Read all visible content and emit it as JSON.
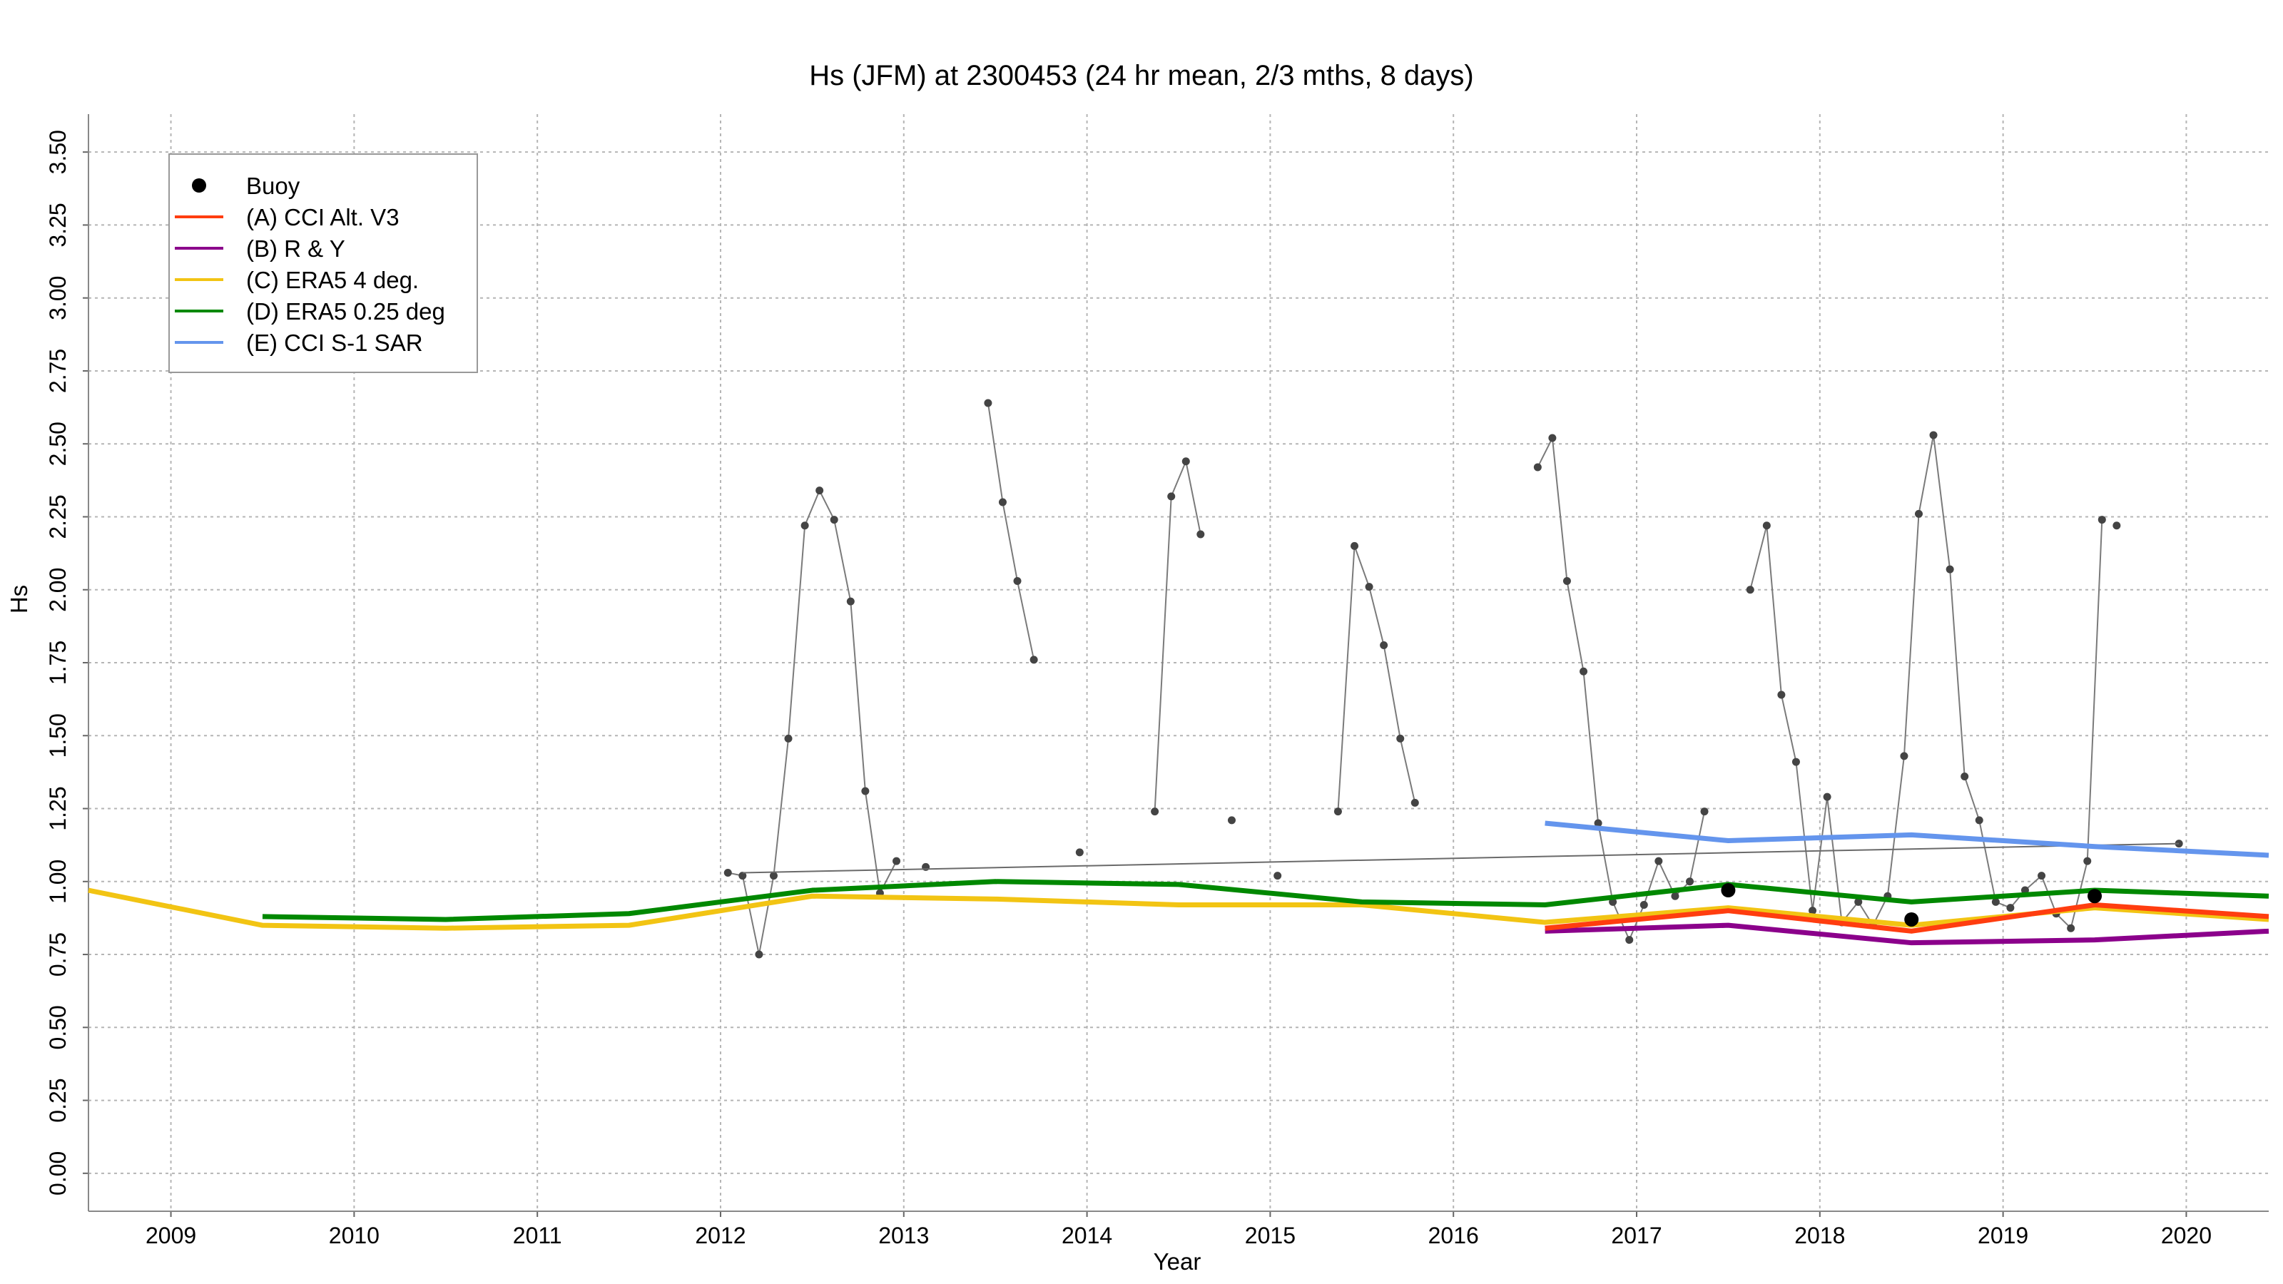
{
  "chart_data": {
    "type": "line",
    "title": "Hs (JFM) at 2300453 (24 hr mean, 2/3 mths, 8 days)",
    "xlabel": "Year",
    "ylabel": "Hs",
    "xlim": [
      2008.55,
      2020.45
    ],
    "ylim": [
      -0.13,
      3.63
    ],
    "x_ticks": [
      "2009",
      "2010",
      "2011",
      "2012",
      "2013",
      "2014",
      "2015",
      "2016",
      "2017",
      "2018",
      "2019",
      "2020"
    ],
    "y_ticks": [
      "0.00",
      "0.25",
      "0.50",
      "0.75",
      "1.00",
      "1.25",
      "1.50",
      "1.75",
      "2.00",
      "2.25",
      "2.50",
      "2.75",
      "3.00",
      "3.25",
      "3.50"
    ],
    "grid": true,
    "legend_position": "top-left",
    "series": [
      {
        "name": "Buoy",
        "style": "marker",
        "color": "#000000",
        "x": [
          2017.5,
          2018.5,
          2019.5
        ],
        "y": [
          0.97,
          0.87,
          0.95
        ]
      },
      {
        "name": "(A) CCI Alt. V3",
        "style": "line",
        "color": "#ff3d0f",
        "x": [
          2016.5,
          2017.5,
          2018.5,
          2019.5,
          2020.45
        ],
        "y": [
          0.84,
          0.9,
          0.83,
          0.92,
          0.88
        ]
      },
      {
        "name": "(B) R & Y",
        "style": "line",
        "color": "#8b008b",
        "x": [
          2016.5,
          2017.5,
          2018.5,
          2019.5,
          2020.45
        ],
        "y": [
          0.83,
          0.85,
          0.79,
          0.8,
          0.83
        ]
      },
      {
        "name": "(C) ERA5 4 deg.",
        "style": "line",
        "color": "#f2c413",
        "x": [
          2008.55,
          2009.5,
          2010.5,
          2011.5,
          2012.5,
          2013.5,
          2014.5,
          2015.5,
          2016.5,
          2017.5,
          2018.5,
          2019.5,
          2020.45
        ],
        "y": [
          0.97,
          0.85,
          0.84,
          0.85,
          0.95,
          0.94,
          0.92,
          0.92,
          0.86,
          0.91,
          0.85,
          0.91,
          0.87
        ]
      },
      {
        "name": "(D) ERA5 0.25 deg",
        "style": "line",
        "color": "#008800",
        "x": [
          2009.5,
          2010.5,
          2011.5,
          2012.5,
          2013.5,
          2014.5,
          2015.5,
          2016.5,
          2017.5,
          2018.5,
          2019.5,
          2020.45
        ],
        "y": [
          0.88,
          0.87,
          0.89,
          0.97,
          1.0,
          0.99,
          0.93,
          0.92,
          0.99,
          0.93,
          0.97,
          0.95
        ]
      },
      {
        "name": "(E) CCI S-1 SAR",
        "style": "line",
        "color": "#6495ed",
        "x": [
          2016.5,
          2017.5,
          2018.5,
          2019.5,
          2020.45
        ],
        "y": [
          1.2,
          1.14,
          1.16,
          1.12,
          1.09
        ]
      }
    ],
    "buoy_monthly": {
      "color": "#444444",
      "segments": [
        {
          "x": [
            2012.04,
            2012.12,
            2012.21,
            2012.29,
            2012.37,
            2012.46,
            2012.54,
            2012.62,
            2012.71,
            2012.79,
            2012.87,
            2012.96
          ],
          "y": [
            1.03,
            1.02,
            0.75,
            1.02,
            1.49,
            2.22,
            2.34,
            2.24,
            1.96,
            1.31,
            0.96,
            1.07
          ]
        },
        {
          "x": [
            2013.12
          ],
          "y": [
            1.05
          ]
        },
        {
          "x": [
            2013.46,
            2013.54,
            2013.62,
            2013.71
          ],
          "y": [
            2.64,
            2.3,
            2.03,
            1.76
          ]
        },
        {
          "x": [
            2013.96
          ],
          "y": [
            1.1
          ]
        },
        {
          "x": [
            2014.37,
            2014.46,
            2014.54,
            2014.62
          ],
          "y": [
            1.24,
            2.32,
            2.44,
            2.19
          ]
        },
        {
          "x": [
            2014.79
          ],
          "y": [
            1.21
          ]
        },
        {
          "x": [
            2015.04
          ],
          "y": [
            1.02
          ]
        },
        {
          "x": [
            2015.37,
            2015.46,
            2015.54,
            2015.62,
            2015.71,
            2015.79
          ],
          "y": [
            1.24,
            2.15,
            2.01,
            1.81,
            1.49,
            1.27
          ]
        },
        {
          "x": [
            2016.46,
            2016.54,
            2016.62,
            2016.71,
            2016.79,
            2016.87,
            2016.96,
            2017.04,
            2017.12,
            2017.21,
            2017.29,
            2017.37
          ],
          "y": [
            2.42,
            2.52,
            2.03,
            1.72,
            1.2,
            0.93,
            0.8,
            0.92,
            1.07,
            0.95,
            1.0,
            1.24
          ]
        },
        {
          "x": [
            2017.62,
            2017.71,
            2017.79,
            2017.87,
            2017.96,
            2018.04,
            2018.12,
            2018.21,
            2018.29,
            2018.37,
            2018.46,
            2018.54,
            2018.62,
            2018.71,
            2018.79,
            2018.87,
            2018.96,
            2019.04,
            2019.12,
            2019.21,
            2019.29,
            2019.37,
            2019.46,
            2019.54
          ],
          "y": [
            2.0,
            2.22,
            1.64,
            1.41,
            0.9,
            1.29,
            0.86,
            0.93,
            0.85,
            0.95,
            1.43,
            2.26,
            2.53,
            2.07,
            1.36,
            1.21,
            0.93,
            0.91,
            0.97,
            1.02,
            0.89,
            0.84,
            1.07,
            2.24
          ]
        },
        {
          "x": [
            2019.62
          ],
          "y": [
            2.22
          ]
        },
        {
          "x": [
            2019.96
          ],
          "y": [
            1.13
          ]
        }
      ]
    },
    "trend_line": {
      "color": "#555555",
      "x": [
        2012.12,
        2019.96
      ],
      "y": [
        1.03,
        1.13
      ]
    }
  }
}
